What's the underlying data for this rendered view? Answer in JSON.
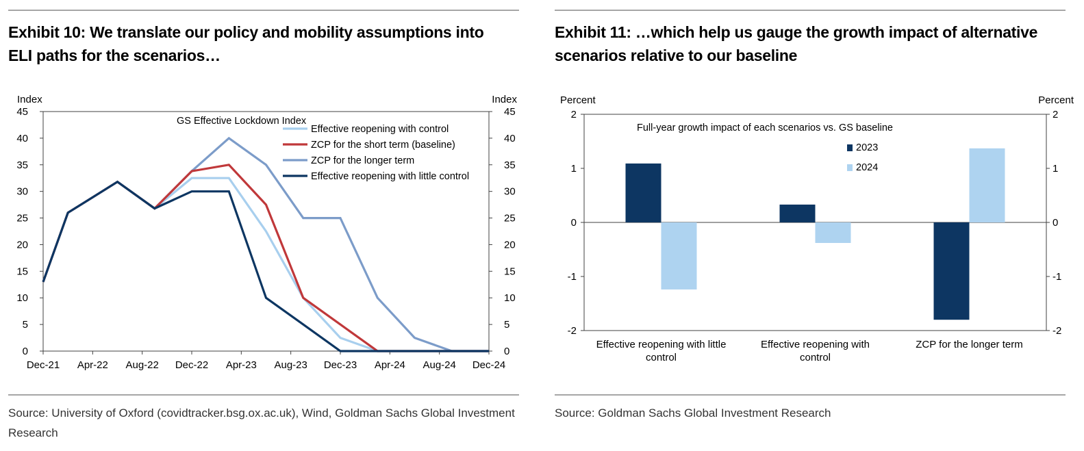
{
  "left": {
    "title_line1": "Exhibit 10: We translate our policy and mobility assumptions into",
    "title_line2": "ELI paths for the scenarios…",
    "source_line1": "Source: University of Oxford (covidtracker.bsg.ox.ac.uk), Wind, Goldman Sachs Global Investment",
    "source_line2": "Research"
  },
  "right": {
    "title_line1": "Exhibit 11: …which help us gauge the growth impact of alternative",
    "title_line2": "scenarios relative to our baseline",
    "source_line1": "Source: Goldman Sachs Global Investment Research"
  },
  "colors": {
    "light_blue": "#a8cfee",
    "red": "#c0383a",
    "mid_blue": "#7c9cc9",
    "navy": "#0d3662",
    "bar_2023": "#0d3662",
    "bar_2024": "#aed3f0"
  },
  "chart_data": [
    {
      "type": "line",
      "title": "GS Effective Lockdown Index",
      "ylabel_left": "Index",
      "ylabel_right": "Index",
      "ylim": [
        0,
        45
      ],
      "yticks": [
        0,
        5,
        10,
        15,
        20,
        25,
        30,
        35,
        40,
        45
      ],
      "x_tick_labels": [
        "Dec-21",
        "Apr-22",
        "Aug-22",
        "Dec-22",
        "Apr-23",
        "Aug-23",
        "Dec-23",
        "Apr-24",
        "Aug-24",
        "Dec-24"
      ],
      "x_months": [
        "Dec-21",
        "Feb-22",
        "Jun-22",
        "Sep-22",
        "Dec-22",
        "Mar-23",
        "Jun-23",
        "Sep-23",
        "Dec-23",
        "Mar-24",
        "Jun-24",
        "Sep-24",
        "Dec-24"
      ],
      "x": [
        0,
        2,
        6,
        9,
        12,
        15,
        18,
        21,
        24,
        27,
        30,
        33,
        36
      ],
      "series": [
        {
          "name": "Effective reopening with control",
          "color": "#a8cfee",
          "values": [
            13,
            26,
            31.8,
            26.8,
            32.5,
            32.5,
            22.5,
            10,
            2.5,
            0,
            0,
            0,
            0
          ]
        },
        {
          "name": "ZCP for the short term (baseline)",
          "color": "#c0383a",
          "values": [
            13,
            26,
            31.8,
            26.8,
            33.8,
            35,
            27.5,
            10,
            5,
            0,
            0,
            0,
            0
          ]
        },
        {
          "name": "ZCP for the longer term",
          "color": "#7c9cc9",
          "values": [
            13,
            26,
            31.8,
            26.8,
            33.8,
            40,
            35,
            25,
            25,
            10,
            2.5,
            0,
            0
          ]
        },
        {
          "name": "Effective reopening with little control",
          "color": "#0d3662",
          "values": [
            13,
            26,
            31.8,
            26.8,
            30,
            30,
            10,
            5,
            0,
            0,
            0,
            0,
            0
          ]
        }
      ]
    },
    {
      "type": "bar",
      "title": "Full-year growth impact of each scenarios vs. GS baseline",
      "ylabel_left": "Percent",
      "ylabel_right": "Percent",
      "ylim": [
        -2,
        2
      ],
      "yticks": [
        -2,
        -1,
        0,
        1,
        2
      ],
      "categories": [
        "Effective reopening with little control",
        "Effective reopening with control",
        "ZCP for the longer term"
      ],
      "category_labels": [
        [
          "Effective reopening with little",
          "control"
        ],
        [
          "Effective reopening with",
          "control"
        ],
        [
          "ZCP for the longer term"
        ]
      ],
      "series": [
        {
          "name": "2023",
          "color": "#0d3662",
          "values": [
            1.09,
            0.33,
            -1.8
          ]
        },
        {
          "name": "2024",
          "color": "#aed3f0",
          "values": [
            -1.24,
            -0.38,
            1.37
          ]
        }
      ]
    }
  ]
}
